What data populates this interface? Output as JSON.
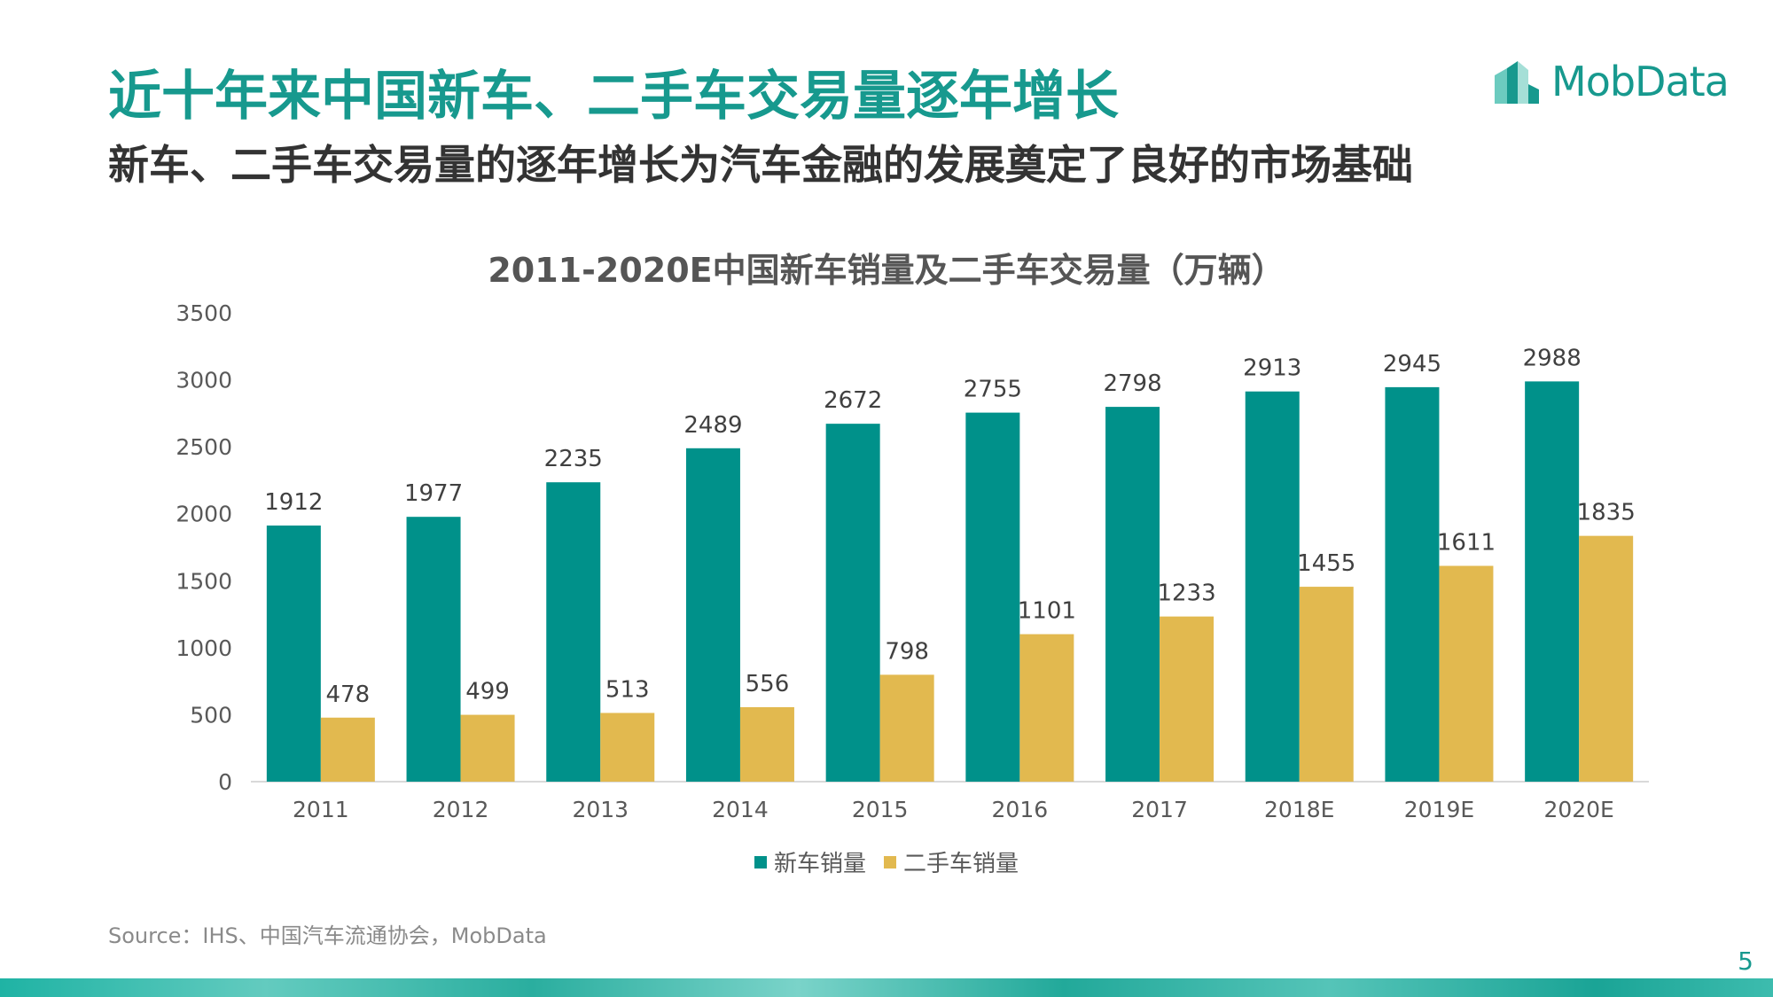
{
  "header": {
    "title": "近十年来中国新车、二手车交易量逐年增长",
    "subtitle": "新车、二手车交易量的逐年增长为汽车金融的发展奠定了良好的市场基础",
    "logo_text": "MobData"
  },
  "chart_data": {
    "type": "bar",
    "title": "2011-2020E中国新车销量及二手车交易量（万辆）",
    "categories": [
      "2011",
      "2012",
      "2013",
      "2014",
      "2015",
      "2016",
      "2017",
      "2018E",
      "2019E",
      "2020E"
    ],
    "series": [
      {
        "name": "新车销量",
        "color": "#00918a",
        "values": [
          1912,
          1977,
          2235,
          2489,
          2672,
          2755,
          2798,
          2913,
          2945,
          2988
        ]
      },
      {
        "name": "二手车销量",
        "color": "#e2b94f",
        "values": [
          478,
          499,
          513,
          556,
          798,
          1101,
          1233,
          1455,
          1611,
          1835
        ]
      }
    ],
    "ylim": [
      0,
      3500
    ],
    "yticks": [
      0,
      500,
      1000,
      1500,
      2000,
      2500,
      3000,
      3500
    ],
    "grid": false,
    "legend_position": "bottom",
    "data_labels": true
  },
  "footer": {
    "source": "Source：IHS、中国汽车流通协会，MobData",
    "page_number": "5"
  }
}
